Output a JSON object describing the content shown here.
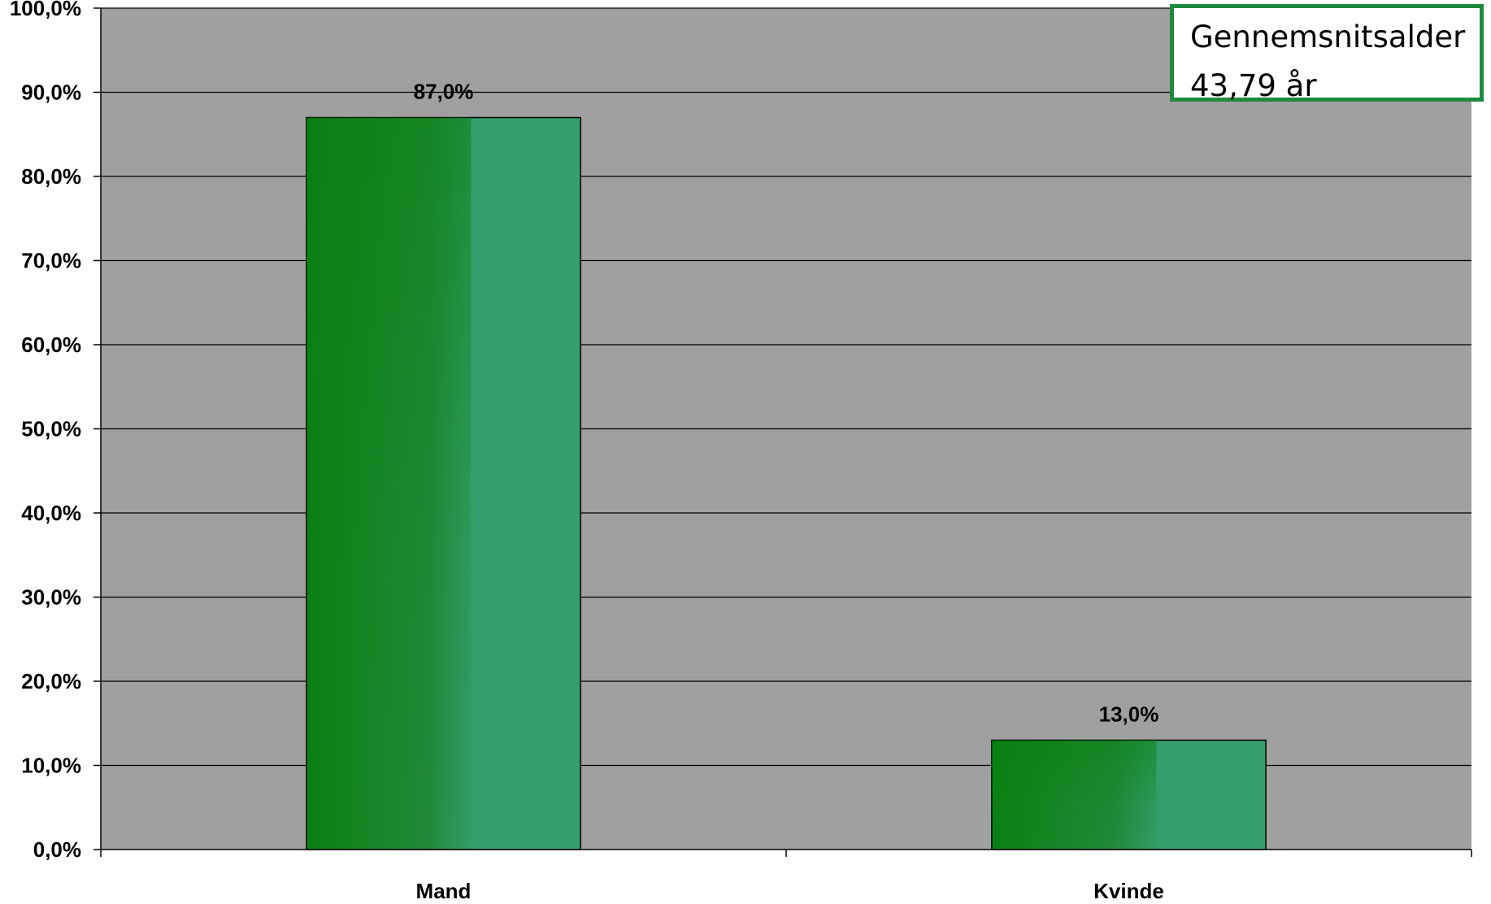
{
  "chart_data": {
    "type": "bar",
    "categories": [
      "Mand",
      "Kvinde"
    ],
    "values": [
      87.0,
      13.0
    ],
    "data_labels": [
      "87,0%",
      "13,0%"
    ],
    "title": "",
    "xlabel": "",
    "ylabel": "",
    "ylim": [
      0,
      100
    ],
    "yticks": [
      0,
      10,
      20,
      30,
      40,
      50,
      60,
      70,
      80,
      90,
      100
    ],
    "ytick_labels": [
      "0,0%",
      "10,0%",
      "20,0%",
      "30,0%",
      "40,0%",
      "50,0%",
      "60,0%",
      "70,0%",
      "80,0%",
      "90,0%",
      "100,0%"
    ],
    "grid": true,
    "legend": "none",
    "colors": {
      "plot_background": "#a0a0a0",
      "bar_dark": "#0a8012",
      "bar_light": "#35a06e",
      "gridline": "#000000"
    }
  },
  "info_box": {
    "line1": "Gennemsnitsalder",
    "line2": "43,79 år",
    "border_color": "#1e8a3c"
  }
}
